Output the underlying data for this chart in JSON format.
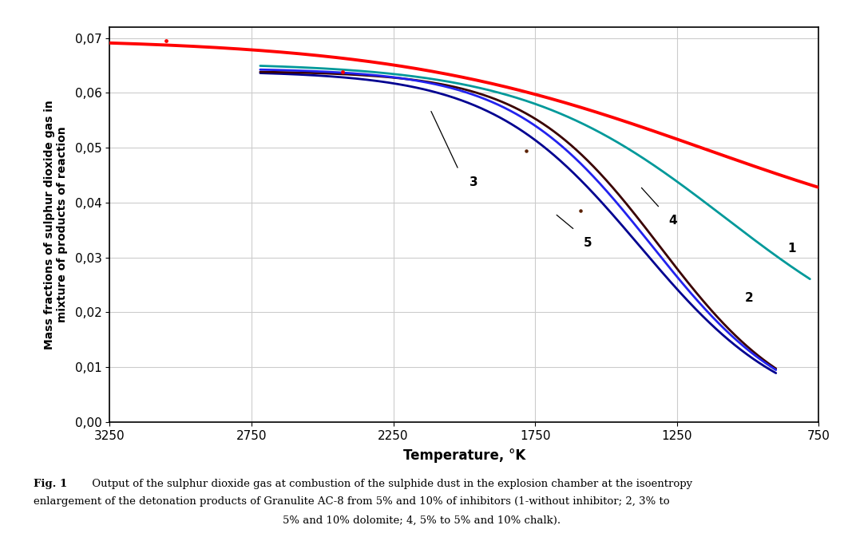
{
  "xlabel": "Temperature, °K",
  "ylabel": "Mass fractions of sulphur dioxide gas in\nmixture of products of reaction",
  "xlim": [
    3250,
    750
  ],
  "ylim": [
    0.0,
    0.072
  ],
  "yticks": [
    0.0,
    0.01,
    0.02,
    0.03,
    0.04,
    0.05,
    0.06,
    0.07
  ],
  "ytick_labels": [
    "0,00",
    "0,01",
    "0,02",
    "0,03",
    "0,04",
    "0,05",
    "0,06",
    "0,07"
  ],
  "xticks": [
    3250,
    2750,
    2250,
    1750,
    1250,
    750
  ],
  "xtick_labels": [
    "3250",
    "2750",
    "2250",
    "1750",
    "1250",
    "750"
  ],
  "grid_color": "#cccccc",
  "background_color": "#ffffff",
  "fig_caption_line1": "Fig. 1 Output of the sulphur dioxide gas at combustion of the sulphide dust in the explosion chamber at the isoentropy",
  "fig_caption_line2": "enlargement of the detonation products of Granulite AC-8 from 5% and 10% of inhibitors (1-without inhibitor; 2, 3% to",
  "fig_caption_line3": "5% and 10% dolomite; 4, 5% to 5% and 10% chalk).",
  "curve1_color": "#ff0000",
  "curve2_color": "#00999a",
  "curve3_color": "#000090",
  "curve4_color": "#2222ee",
  "curve5_color": "#3a0000",
  "scatter_color": "#ff0000",
  "scatter2_color": "#5a2000"
}
